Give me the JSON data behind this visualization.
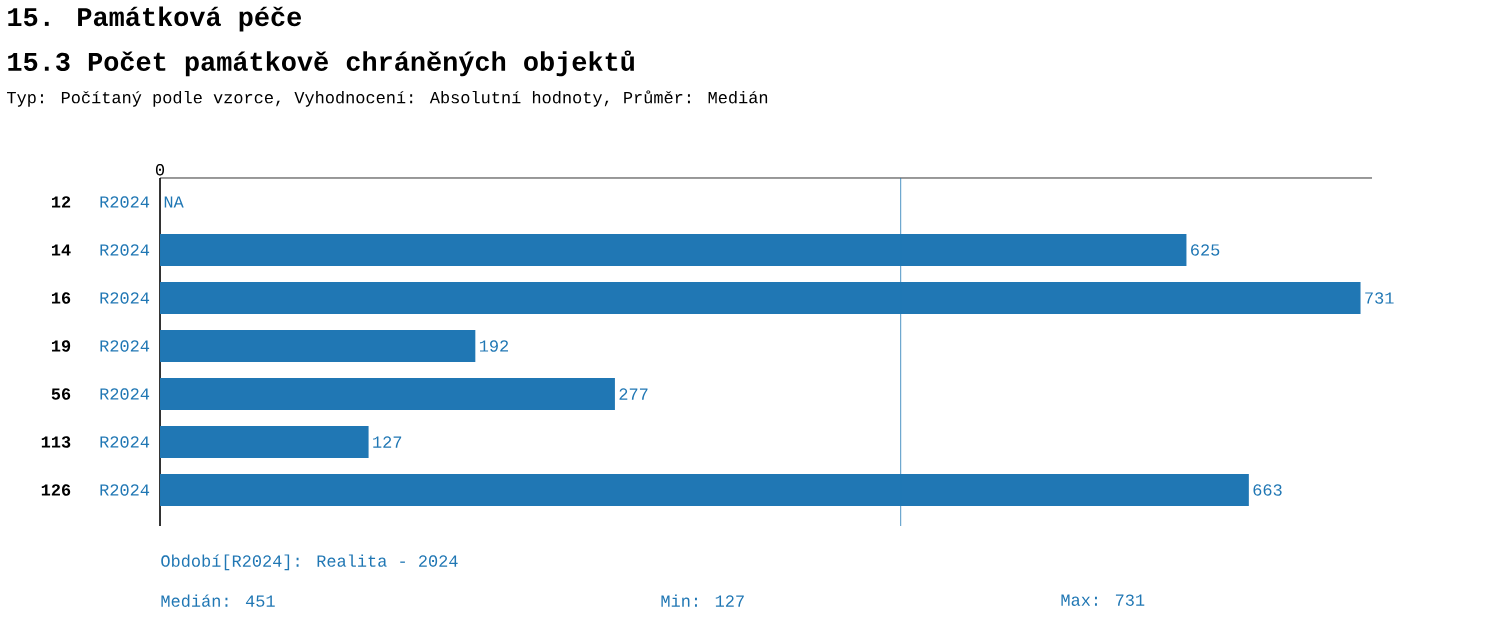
{
  "chart_data": {
    "type": "bar",
    "orientation": "horizontal",
    "title": "15. Památková péče",
    "subtitle": "15.3 Počet památkově chráněných objektů",
    "categories": [
      "12",
      "14",
      "16",
      "19",
      "56",
      "113",
      "126"
    ],
    "series": [
      {
        "name": "R2024",
        "color": "#2077b4",
        "values": [
          null,
          625,
          731,
          192,
          277,
          127,
          663
        ]
      }
    ],
    "data_labels": true,
    "value_labels": [
      "NA",
      null,
      null,
      null,
      null,
      null,
      null
    ],
    "xlim": [
      0,
      738
    ],
    "ref_lines": [
      {
        "axis": "x",
        "value": 451,
        "color": "#2077b4"
      }
    ],
    "annotations": [
      "Typ: Počítaný podle vzorce, Vyhodnocení: Absolutní hodnoty, Průměr: Medián",
      "Období[R2024]: Realita - 2024",
      "Medián: 451",
      "Min: 127",
      "Max: 731",
      "0"
    ]
  }
}
